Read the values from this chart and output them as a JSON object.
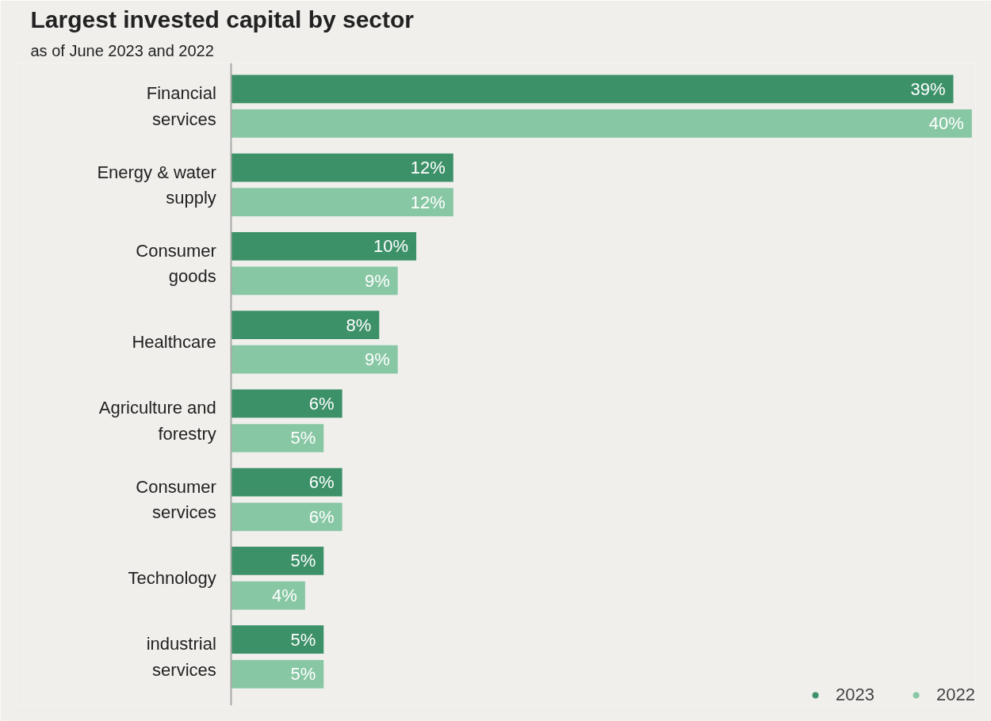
{
  "chart_data": {
    "type": "bar",
    "orientation": "horizontal",
    "title": "Largest invested capital by sector",
    "subtitle": "as of June 2023 and 2022",
    "categories": [
      "Financial services",
      "Energy & water supply",
      "Consumer goods",
      "Healthcare",
      "Agriculture and forestry",
      "Consumer services",
      "Technology",
      "industrial services"
    ],
    "series": [
      {
        "name": "2023",
        "color": "#3d9169",
        "values": [
          39,
          12,
          10,
          8,
          6,
          6,
          5,
          5
        ],
        "value_labels": [
          "39%",
          "12%",
          "10%",
          "8%",
          "6%",
          "6%",
          "5%",
          "5%"
        ]
      },
      {
        "name": "2022",
        "color": "#88c7a4",
        "values": [
          40,
          12,
          9,
          9,
          5,
          6,
          4,
          5
        ],
        "value_labels": [
          "40%",
          "12%",
          "9%",
          "9%",
          "5%",
          "6%",
          "4%",
          "5%"
        ]
      }
    ],
    "legend": "bottom right",
    "marker": "circle",
    "grid": false
  }
}
